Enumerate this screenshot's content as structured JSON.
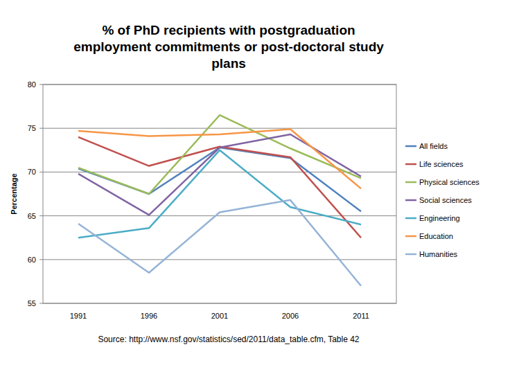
{
  "chart_data": {
    "type": "line",
    "title": "% of PhD recipients with postgraduation employment commitments or post-doctoral study plans",
    "y_label": "Percentage",
    "annotations": [
      "Source: http://www.nsf.gov/statistics/sed/2011/data_table.cfm, Table 42"
    ],
    "categories": [
      "1991",
      "1996",
      "2001",
      "2006",
      "2011"
    ],
    "series": [
      {
        "name": "All fields",
        "color": "#4f81bd",
        "values": [
          70.4,
          67.5,
          72.8,
          71.6,
          65.5
        ]
      },
      {
        "name": "Life sciences",
        "color": "#c0504d",
        "values": [
          74.0,
          70.7,
          72.9,
          71.7,
          62.5
        ]
      },
      {
        "name": "Physical sciences",
        "color": "#9bbb59",
        "values": [
          70.5,
          67.5,
          76.5,
          72.7,
          69.3
        ]
      },
      {
        "name": "Social sciences",
        "color": "#8064a2",
        "values": [
          69.8,
          65.1,
          72.8,
          74.3,
          69.5
        ]
      },
      {
        "name": "Engineering",
        "color": "#4bacc6",
        "values": [
          62.5,
          63.6,
          72.5,
          66.0,
          64.0
        ]
      },
      {
        "name": "Education",
        "color": "#f79646",
        "values": [
          74.7,
          74.1,
          74.3,
          74.9,
          68.1
        ]
      },
      {
        "name": "Humanities",
        "color": "#95b3d7",
        "values": [
          64.1,
          58.5,
          65.4,
          66.8,
          57.0
        ]
      }
    ],
    "ylim": [
      55,
      80
    ],
    "yticks": [
      55,
      60,
      65,
      70,
      75,
      80
    ],
    "grid": true,
    "legend": "right"
  }
}
